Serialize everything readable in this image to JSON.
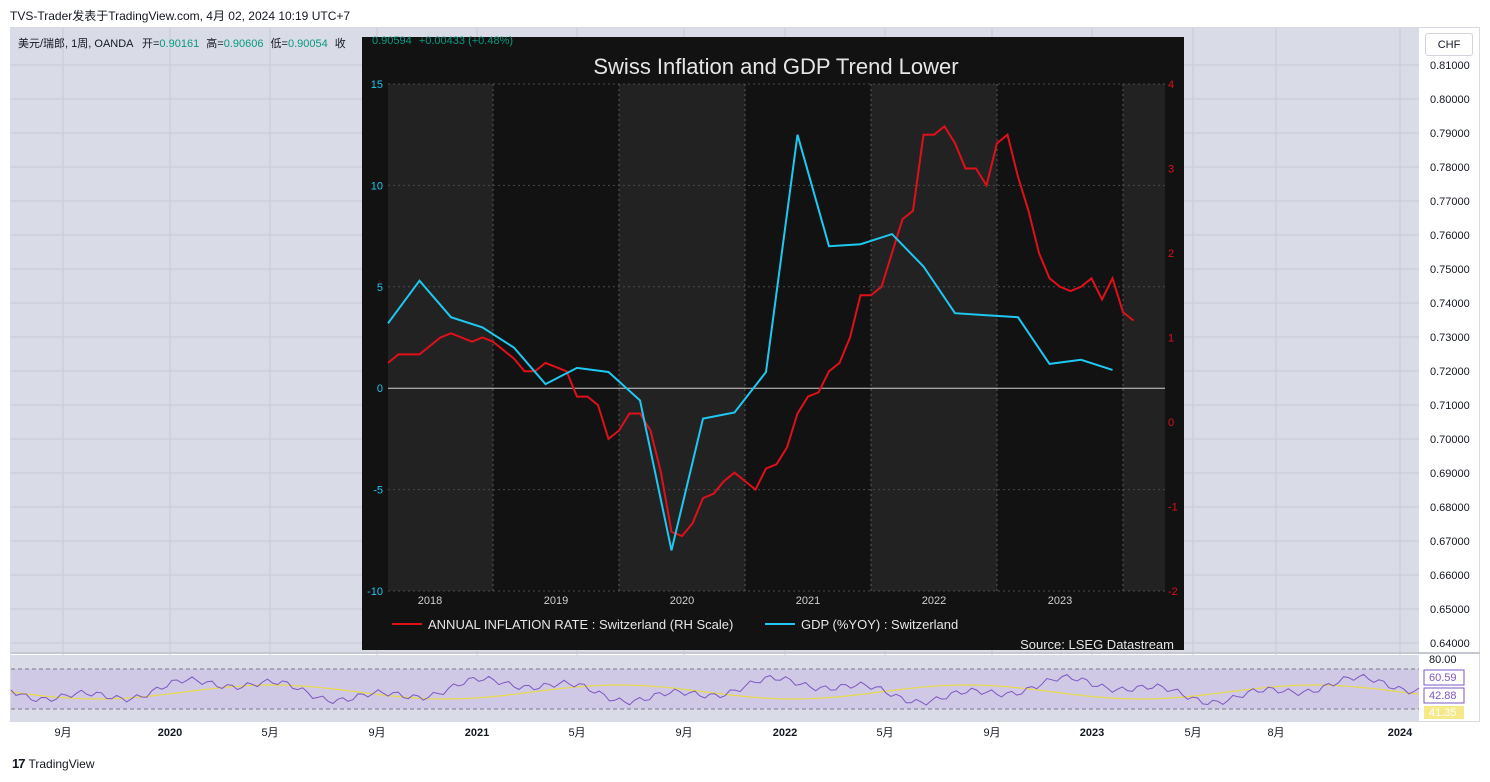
{
  "header": {
    "text": "TVS-Trader发表于TradingView.com, 4月 02, 2024 10:19 UTC+7"
  },
  "legend": {
    "symbol": "美元/瑞郎, 1周, OANDA",
    "open_label": "开=",
    "open": "0.90161",
    "high_label": "高=",
    "high": "0.90606",
    "low_label": "低=",
    "low": "0.90054",
    "close_label": "收",
    "close": "0.90594",
    "change": "+0.00433 (+0.48%)"
  },
  "price_axis": {
    "currency": "CHF",
    "ticks": [
      "0.81000",
      "0.80000",
      "0.79000",
      "0.78000",
      "0.77000",
      "0.76000",
      "0.75000",
      "0.74000",
      "0.73000",
      "0.72000",
      "0.71000",
      "0.70000",
      "0.69000",
      "0.68000",
      "0.67000",
      "0.66000",
      "0.65000",
      "0.64000"
    ]
  },
  "time_axis": {
    "ticks": [
      "9月",
      "2020",
      "5月",
      "9月",
      "2021",
      "5月",
      "9月",
      "2022",
      "5月",
      "9月",
      "2023",
      "5月",
      "8月",
      "2024"
    ]
  },
  "rsi": {
    "scale_top": "80.00",
    "value": "60.59",
    "ma_value": "42.88",
    "lower_value": "41.35"
  },
  "inset": {
    "title": "Swiss Inflation and GDP Trend Lower",
    "source": "Source: LSEG Datastream"
  },
  "chart_data": {
    "type": "line",
    "title": "Swiss Inflation and GDP Trend Lower",
    "x_tick_labels": [
      "2018",
      "2019",
      "2020",
      "2021",
      "2022",
      "2023"
    ],
    "left_axis": {
      "ylim": [
        -10,
        15
      ],
      "ticks": [
        "15",
        "10",
        "5",
        "0",
        "-5",
        "-10"
      ],
      "color": "#1ec8f0"
    },
    "right_axis": {
      "ylim": [
        -2,
        4
      ],
      "ticks": [
        "4",
        "3",
        "2",
        "1",
        "0",
        "-1",
        "-2"
      ],
      "color": "#e0101a"
    },
    "grid": true,
    "legend_position": "bottom",
    "series": [
      {
        "name": "ANNUAL INFLATION RATE : Switzerland (RH Scale)",
        "axis": "right",
        "color": "#e0101a",
        "points": [
          [
            "2017-09",
            0.7
          ],
          [
            "2017-10",
            0.8
          ],
          [
            "2017-11",
            0.8
          ],
          [
            "2017-12",
            0.8
          ],
          [
            "2018-01",
            0.9
          ],
          [
            "2018-02",
            1.0
          ],
          [
            "2018-03",
            1.05
          ],
          [
            "2018-04",
            1.0
          ],
          [
            "2018-05",
            0.95
          ],
          [
            "2018-06",
            1.0
          ],
          [
            "2018-07",
            0.95
          ],
          [
            "2018-08",
            0.85
          ],
          [
            "2018-09",
            0.75
          ],
          [
            "2018-10",
            0.6
          ],
          [
            "2018-11",
            0.6
          ],
          [
            "2018-12",
            0.7
          ],
          [
            "2019-01",
            0.65
          ],
          [
            "2019-02",
            0.6
          ],
          [
            "2019-03",
            0.3
          ],
          [
            "2019-04",
            0.3
          ],
          [
            "2019-05",
            0.2
          ],
          [
            "2019-06",
            -0.2
          ],
          [
            "2019-07",
            -0.1
          ],
          [
            "2019-08",
            0.1
          ],
          [
            "2019-09",
            0.1
          ],
          [
            "2019-10",
            -0.1
          ],
          [
            "2019-11",
            -0.6
          ],
          [
            "2019-12",
            -1.3
          ],
          [
            "2020-01",
            -1.35
          ],
          [
            "2020-02",
            -1.2
          ],
          [
            "2020-03",
            -0.9
          ],
          [
            "2020-04",
            -0.85
          ],
          [
            "2020-05",
            -0.7
          ],
          [
            "2020-06",
            -0.6
          ],
          [
            "2020-07",
            -0.7
          ],
          [
            "2020-08",
            -0.8
          ],
          [
            "2020-09",
            -0.55
          ],
          [
            "2020-10",
            -0.5
          ],
          [
            "2020-11",
            -0.3
          ],
          [
            "2020-12",
            0.1
          ],
          [
            "2021-01",
            0.3
          ],
          [
            "2021-02",
            0.35
          ],
          [
            "2021-03",
            0.6
          ],
          [
            "2021-04",
            0.7
          ],
          [
            "2021-05",
            1.0
          ],
          [
            "2021-06",
            1.5
          ],
          [
            "2021-07",
            1.5
          ],
          [
            "2021-08",
            1.6
          ],
          [
            "2021-09",
            2.0
          ],
          [
            "2021-10",
            2.4
          ],
          [
            "2021-11",
            2.5
          ],
          [
            "2021-12",
            3.4
          ],
          [
            "2022-01",
            3.4
          ],
          [
            "2022-02",
            3.5
          ],
          [
            "2022-03",
            3.3
          ],
          [
            "2022-04",
            3.0
          ],
          [
            "2022-05",
            3.0
          ],
          [
            "2022-06",
            2.8
          ],
          [
            "2022-07",
            3.3
          ],
          [
            "2022-08",
            3.4
          ],
          [
            "2022-09",
            2.9
          ],
          [
            "2022-10",
            2.5
          ],
          [
            "2022-11",
            2.0
          ],
          [
            "2022-12",
            1.7
          ],
          [
            "2023-01",
            1.6
          ],
          [
            "2023-02",
            1.55
          ],
          [
            "2023-03",
            1.6
          ],
          [
            "2023-04",
            1.7
          ],
          [
            "2023-05",
            1.45
          ],
          [
            "2023-06",
            1.7
          ],
          [
            "2023-07",
            1.3
          ],
          [
            "2023-08",
            1.2
          ]
        ]
      },
      {
        "name": "GDP (%YOY) : Switzerland",
        "axis": "left",
        "color": "#1ec8f0",
        "points": [
          [
            "2017-09",
            3.2
          ],
          [
            "2017-12",
            5.3
          ],
          [
            "2018-03",
            3.5
          ],
          [
            "2018-06",
            3.0
          ],
          [
            "2018-09",
            2.0
          ],
          [
            "2018-12",
            0.2
          ],
          [
            "2019-03",
            1.0
          ],
          [
            "2019-06",
            0.8
          ],
          [
            "2019-09",
            -0.6
          ],
          [
            "2019-12",
            -8.0
          ],
          [
            "2020-03",
            -1.5
          ],
          [
            "2020-06",
            -1.2
          ],
          [
            "2020-09",
            0.8
          ],
          [
            "2020-12",
            12.5
          ],
          [
            "2021-03",
            7.0
          ],
          [
            "2021-06",
            7.1
          ],
          [
            "2021-09",
            7.6
          ],
          [
            "2021-12",
            6.0
          ],
          [
            "2022-03",
            3.7
          ],
          [
            "2022-06",
            3.6
          ],
          [
            "2022-09",
            3.5
          ],
          [
            "2022-12",
            1.2
          ],
          [
            "2023-03",
            1.4
          ],
          [
            "2023-06",
            0.9
          ]
        ]
      }
    ]
  }
}
